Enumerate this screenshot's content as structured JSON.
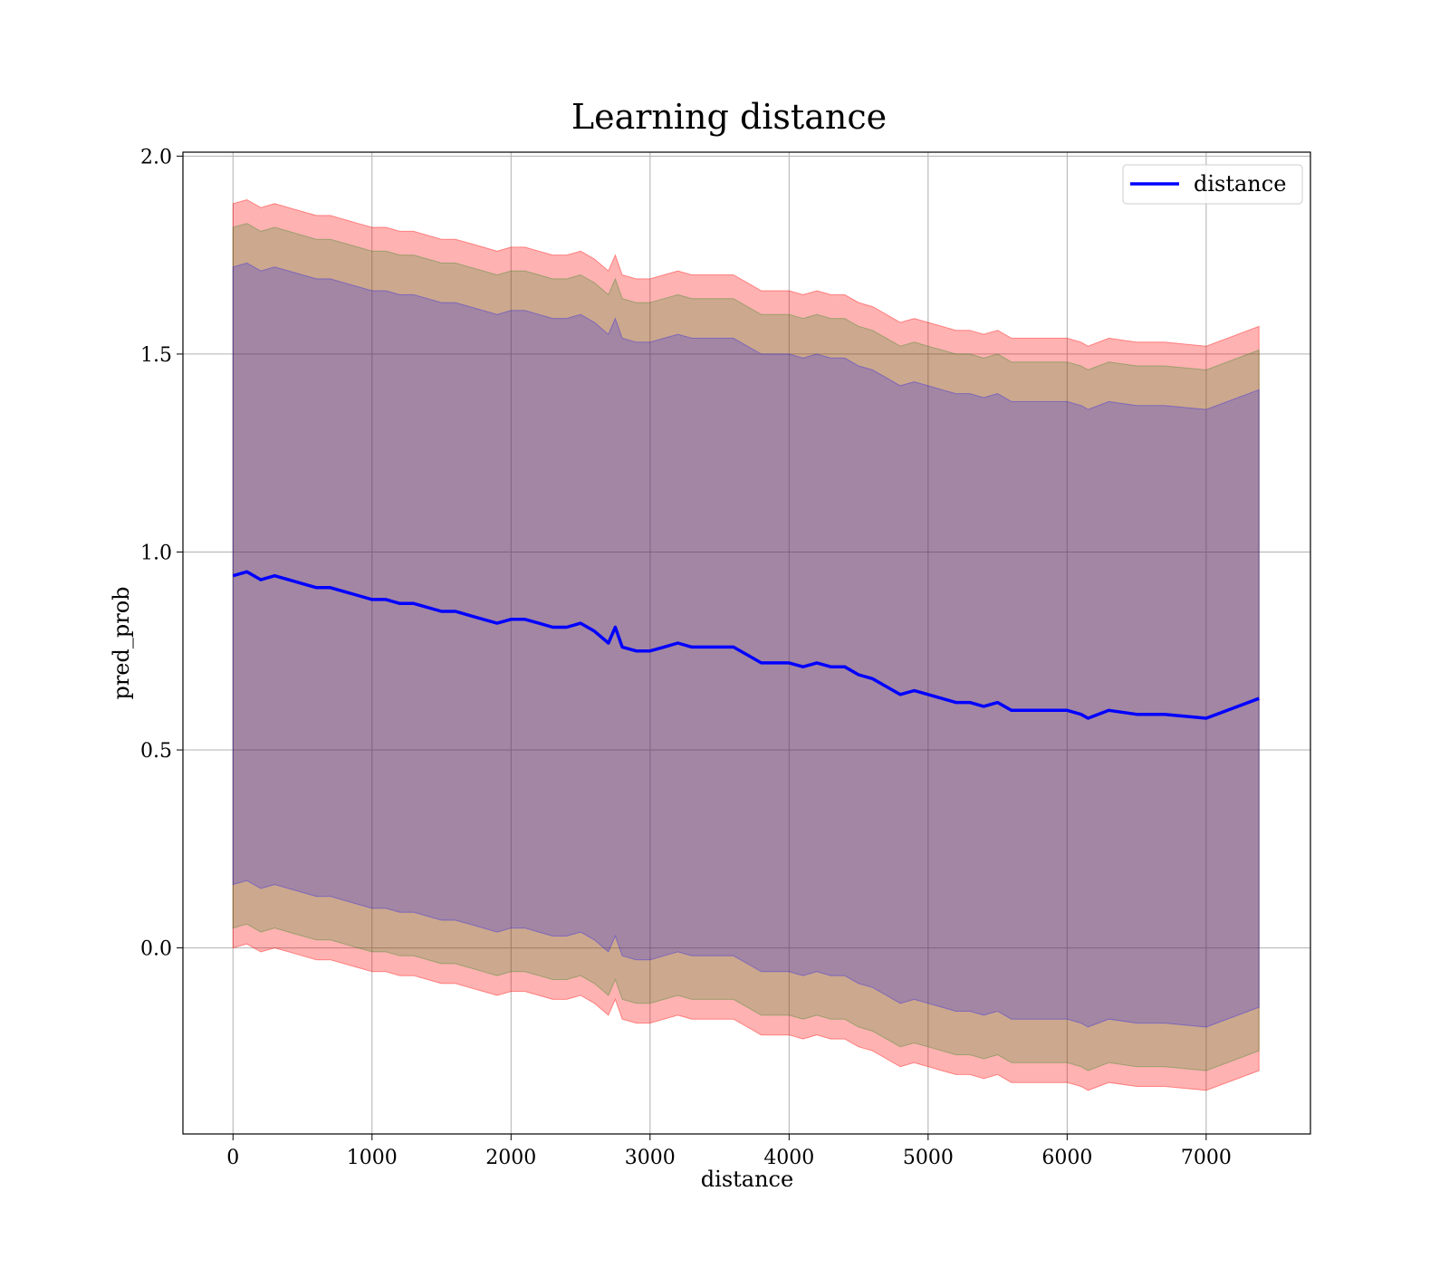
{
  "chart_data": {
    "type": "line",
    "title": "Learning distance",
    "xlabel": "distance",
    "ylabel": "pred_prob",
    "xlim": [
      -360,
      7750
    ],
    "ylim": [
      -0.47,
      2.01
    ],
    "grid": true,
    "legend_placement": "top-right",
    "x_ticks": [
      0,
      1000,
      2000,
      3000,
      4000,
      5000,
      6000,
      7000
    ],
    "y_ticks": [
      0.0,
      0.5,
      1.0,
      1.5,
      2.0
    ],
    "x_tick_labels": [
      "0",
      "1000",
      "2000",
      "3000",
      "4000",
      "5000",
      "6000",
      "7000"
    ],
    "y_tick_labels": [
      "0.0",
      "0.5",
      "1.0",
      "1.5",
      "2.0"
    ],
    "series": [
      {
        "name": "distance",
        "color": "#0000ff",
        "x": [
          0,
          100,
          200,
          300,
          400,
          500,
          600,
          700,
          800,
          900,
          1000,
          1100,
          1200,
          1300,
          1400,
          1500,
          1600,
          1700,
          1800,
          1900,
          2000,
          2100,
          2200,
          2300,
          2400,
          2500,
          2600,
          2700,
          2750,
          2800,
          2900,
          3000,
          3100,
          3200,
          3300,
          3400,
          3500,
          3600,
          3700,
          3800,
          3900,
          4000,
          4100,
          4200,
          4300,
          4400,
          4500,
          4600,
          4700,
          4800,
          4900,
          5000,
          5100,
          5200,
          5300,
          5400,
          5500,
          5600,
          5700,
          5800,
          5900,
          6000,
          6100,
          6150,
          6300,
          6500,
          6700,
          7000,
          7380
        ],
        "y": [
          0.94,
          0.95,
          0.93,
          0.94,
          0.93,
          0.92,
          0.91,
          0.91,
          0.9,
          0.89,
          0.88,
          0.88,
          0.87,
          0.87,
          0.86,
          0.85,
          0.85,
          0.84,
          0.83,
          0.82,
          0.83,
          0.83,
          0.82,
          0.81,
          0.81,
          0.82,
          0.8,
          0.77,
          0.81,
          0.76,
          0.75,
          0.75,
          0.76,
          0.77,
          0.76,
          0.76,
          0.76,
          0.76,
          0.74,
          0.72,
          0.72,
          0.72,
          0.71,
          0.72,
          0.71,
          0.71,
          0.69,
          0.68,
          0.66,
          0.64,
          0.65,
          0.64,
          0.63,
          0.62,
          0.62,
          0.61,
          0.62,
          0.6,
          0.6,
          0.6,
          0.6,
          0.6,
          0.59,
          0.58,
          0.6,
          0.59,
          0.59,
          0.58,
          0.63
        ]
      }
    ],
    "bands": [
      {
        "sigma": 3,
        "fill": "#ff0000",
        "opacity": 0.3,
        "upper_offset": 0.94,
        "lower_offset": 0.94
      },
      {
        "sigma": 2,
        "fill": "#008000",
        "opacity": 0.2,
        "upper_offset": 0.88,
        "lower_offset": 0.89
      },
      {
        "sigma": 1,
        "fill": "#0000ff",
        "opacity": 0.2,
        "upper_offset": 0.78,
        "lower_offset": 0.78
      }
    ]
  }
}
